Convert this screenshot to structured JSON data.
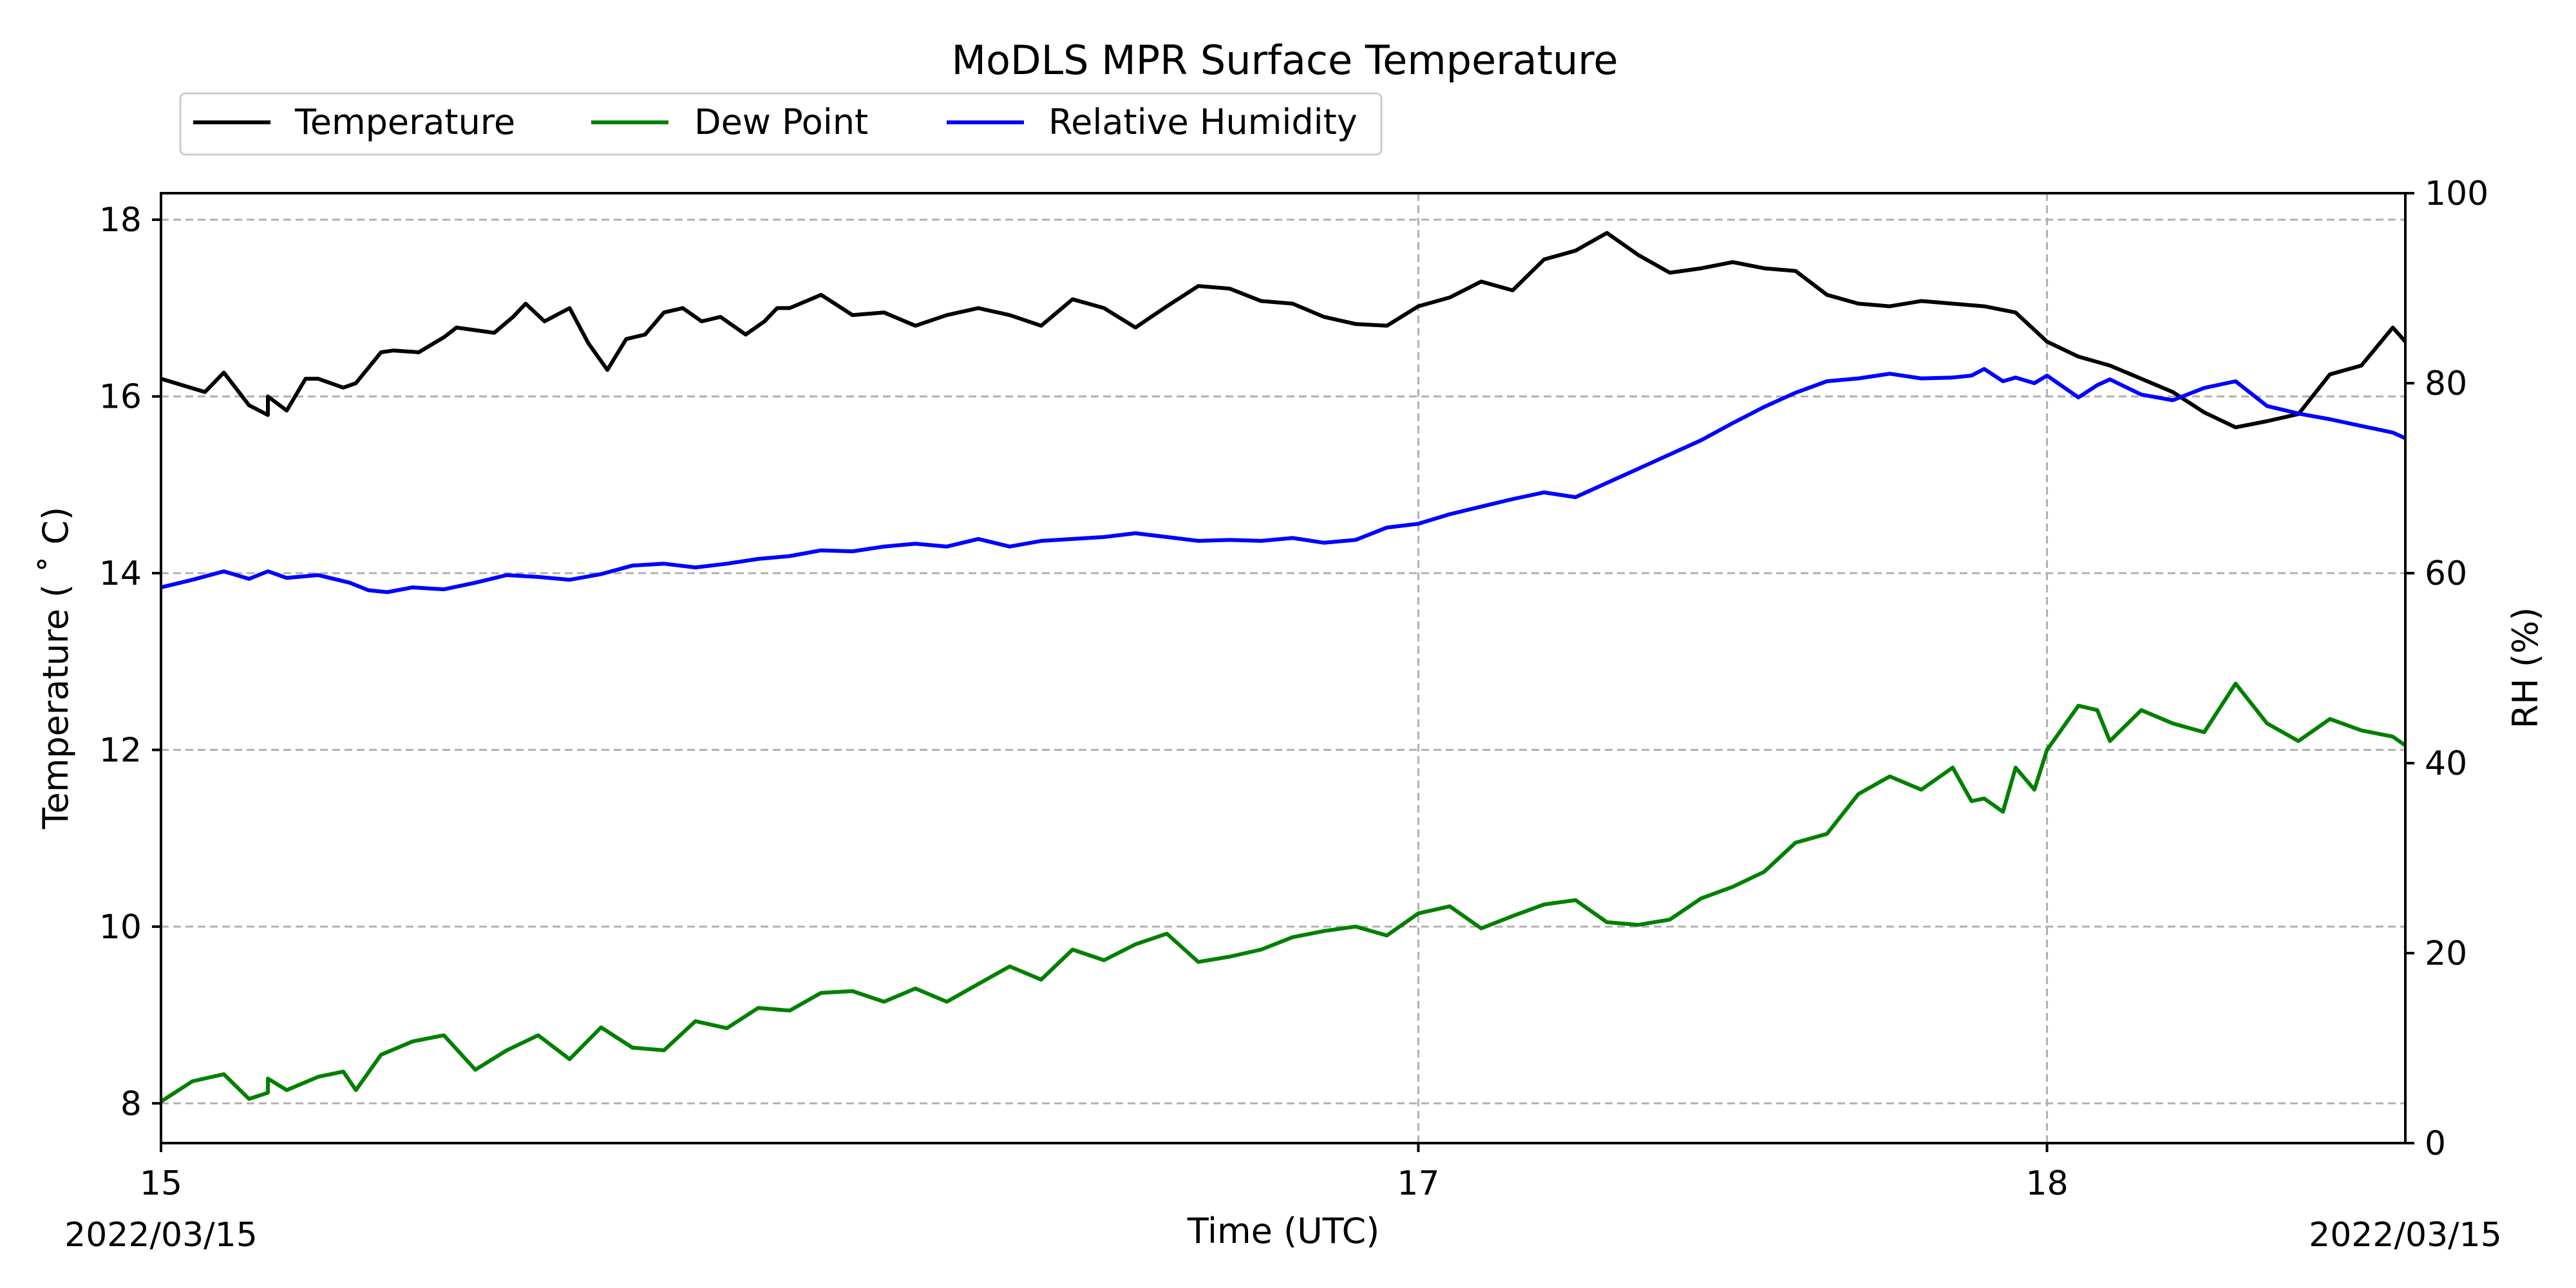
{
  "chart_data": {
    "type": "line",
    "title": "MoDLS MPR Surface Temperature",
    "xlabel": "Time (UTC)",
    "ylabel_left": "Temperature ($^\\circ$C)",
    "ylabel_left_display": "Temperature ( ˚ C)",
    "ylabel_right": "RH (%)",
    "x_start_label": "2022/03/15",
    "x_end_label": "2022/03/15",
    "xlim": [
      15.0,
      18.57
    ],
    "ylim_left": [
      7.55,
      18.3
    ],
    "ylim_right": [
      0,
      100
    ],
    "x_ticks": [
      {
        "value": 15,
        "label": "15"
      },
      {
        "value": 17,
        "label": "17"
      },
      {
        "value": 18,
        "label": "18"
      }
    ],
    "y_ticks_left": [
      8,
      10,
      12,
      14,
      16,
      18
    ],
    "y_ticks_right": [
      0,
      20,
      40,
      60,
      80,
      100
    ],
    "grid": true,
    "legend_position": "top-left, above plot",
    "series": [
      {
        "name": "Temperature",
        "color": "#000000",
        "axis": "left",
        "x": [
          15.0,
          15.07,
          15.1,
          15.14,
          15.17,
          15.17,
          15.2,
          15.23,
          15.25,
          15.29,
          15.31,
          15.35,
          15.37,
          15.41,
          15.45,
          15.47,
          15.53,
          15.56,
          15.58,
          15.61,
          15.65,
          15.68,
          15.71,
          15.74,
          15.77,
          15.8,
          15.83,
          15.86,
          15.89,
          15.93,
          15.96,
          15.98,
          16.0,
          16.05,
          16.1,
          16.15,
          16.2,
          16.25,
          16.3,
          16.35,
          16.4,
          16.45,
          16.5,
          16.55,
          16.6,
          16.65,
          16.7,
          16.75,
          16.8,
          16.85,
          16.9,
          16.95,
          17.0,
          17.05,
          17.1,
          17.15,
          17.2,
          17.25,
          17.3,
          17.35,
          17.4,
          17.45,
          17.5,
          17.55,
          17.6,
          17.65,
          17.7,
          17.75,
          17.8,
          17.85,
          17.9,
          17.95,
          18.0,
          18.05,
          18.1,
          18.15,
          18.2,
          18.25,
          18.3,
          18.35,
          18.4,
          18.45,
          18.5,
          18.55,
          18.57
        ],
        "y": [
          16.2,
          16.05,
          16.27,
          15.9,
          15.79,
          16.0,
          15.84,
          16.2,
          16.2,
          16.1,
          16.15,
          16.5,
          16.52,
          16.5,
          16.67,
          16.78,
          16.72,
          16.9,
          17.05,
          16.85,
          17.0,
          16.6,
          16.3,
          16.65,
          16.7,
          16.95,
          17.0,
          16.85,
          16.9,
          16.7,
          16.85,
          17.0,
          17.0,
          17.15,
          16.92,
          16.95,
          16.8,
          16.92,
          17.0,
          16.92,
          16.8,
          17.1,
          17.0,
          16.78,
          17.02,
          17.25,
          17.22,
          17.08,
          17.05,
          16.9,
          16.82,
          16.8,
          17.02,
          17.12,
          17.3,
          17.2,
          17.55,
          17.65,
          17.85,
          17.6,
          17.4,
          17.45,
          17.52,
          17.45,
          17.42,
          17.15,
          17.05,
          17.02,
          17.08,
          17.05,
          17.02,
          16.95,
          16.62,
          16.45,
          16.35,
          16.2,
          16.05,
          15.82,
          15.65,
          15.72,
          15.8,
          16.25,
          16.35,
          16.78,
          16.62
        ],
        "y_rh_units": null
      },
      {
        "name": "Dew Point",
        "color": "#008000",
        "axis": "left",
        "x": [
          15.0,
          15.05,
          15.1,
          15.14,
          15.17,
          15.17,
          15.2,
          15.25,
          15.29,
          15.31,
          15.35,
          15.4,
          15.45,
          15.5,
          15.55,
          15.6,
          15.65,
          15.7,
          15.75,
          15.8,
          15.85,
          15.9,
          15.95,
          16.0,
          16.05,
          16.1,
          16.15,
          16.2,
          16.25,
          16.3,
          16.35,
          16.4,
          16.45,
          16.5,
          16.55,
          16.6,
          16.65,
          16.7,
          16.75,
          16.8,
          16.85,
          16.9,
          16.95,
          17.0,
          17.05,
          17.1,
          17.15,
          17.2,
          17.25,
          17.3,
          17.35,
          17.4,
          17.45,
          17.5,
          17.55,
          17.6,
          17.65,
          17.7,
          17.75,
          17.8,
          17.85,
          17.88,
          17.9,
          17.93,
          17.95,
          17.98,
          18.0,
          18.05,
          18.08,
          18.1,
          18.15,
          18.2,
          18.25,
          18.3,
          18.35,
          18.4,
          18.45,
          18.5,
          18.55,
          18.57
        ],
        "y": [
          8.02,
          8.25,
          8.33,
          8.05,
          8.12,
          8.28,
          8.15,
          8.3,
          8.36,
          8.15,
          8.55,
          8.7,
          8.77,
          8.38,
          8.6,
          8.77,
          8.5,
          8.86,
          8.63,
          8.6,
          8.93,
          8.85,
          9.08,
          9.05,
          9.25,
          9.27,
          9.15,
          9.3,
          9.15,
          9.35,
          9.55,
          9.4,
          9.74,
          9.62,
          9.8,
          9.92,
          9.6,
          9.66,
          9.74,
          9.88,
          9.95,
          10.0,
          9.9,
          10.15,
          10.23,
          9.98,
          10.12,
          10.25,
          10.3,
          10.05,
          10.02,
          10.08,
          10.32,
          10.45,
          10.62,
          10.95,
          11.05,
          11.5,
          11.7,
          11.55,
          11.8,
          11.42,
          11.45,
          11.3,
          11.8,
          11.55,
          12.0,
          12.5,
          12.45,
          12.1,
          12.45,
          12.3,
          12.2,
          12.75,
          12.3,
          12.1,
          12.35,
          12.22,
          12.15,
          12.05
        ],
        "y_rh_units": null
      },
      {
        "name": "Relative Humidity",
        "color": "#0000ff",
        "axis": "right",
        "x": [
          15.0,
          15.05,
          15.1,
          15.14,
          15.17,
          15.2,
          15.25,
          15.3,
          15.33,
          15.36,
          15.4,
          15.45,
          15.5,
          15.55,
          15.6,
          15.65,
          15.7,
          15.75,
          15.8,
          15.85,
          15.9,
          15.95,
          16.0,
          16.05,
          16.1,
          16.15,
          16.2,
          16.25,
          16.3,
          16.35,
          16.4,
          16.45,
          16.5,
          16.55,
          16.6,
          16.65,
          16.7,
          16.75,
          16.8,
          16.85,
          16.9,
          16.95,
          17.0,
          17.05,
          17.1,
          17.15,
          17.2,
          17.25,
          17.3,
          17.35,
          17.4,
          17.45,
          17.5,
          17.55,
          17.6,
          17.65,
          17.7,
          17.75,
          17.8,
          17.85,
          17.88,
          17.9,
          17.93,
          17.95,
          17.98,
          18.0,
          18.05,
          18.08,
          18.1,
          18.15,
          18.2,
          18.25,
          18.3,
          18.35,
          18.4,
          18.45,
          18.5,
          18.55,
          18.57
        ],
        "y": [
          58.5,
          59.3,
          60.2,
          59.4,
          60.2,
          59.5,
          59.8,
          59.0,
          58.2,
          58.0,
          58.5,
          58.3,
          59.0,
          59.8,
          59.6,
          59.3,
          59.9,
          60.8,
          61.0,
          60.6,
          61.0,
          61.5,
          61.8,
          62.4,
          62.3,
          62.8,
          63.1,
          62.8,
          63.6,
          62.8,
          63.4,
          63.6,
          63.8,
          64.2,
          63.8,
          63.4,
          63.5,
          63.4,
          63.7,
          63.2,
          63.5,
          64.8,
          65.2,
          66.2,
          67.0,
          67.8,
          68.5,
          68.0,
          69.5,
          71.0,
          72.5,
          74.0,
          75.8,
          77.5,
          79.0,
          80.2,
          80.5,
          81.0,
          80.5,
          80.6,
          80.8,
          81.5,
          80.2,
          80.6,
          80.0,
          80.8,
          78.5,
          79.8,
          80.4,
          78.8,
          78.2,
          79.5,
          80.2,
          77.6,
          76.8,
          76.2,
          75.5,
          74.8,
          74.2
        ],
        "y_rh_units": "%"
      }
    ]
  }
}
